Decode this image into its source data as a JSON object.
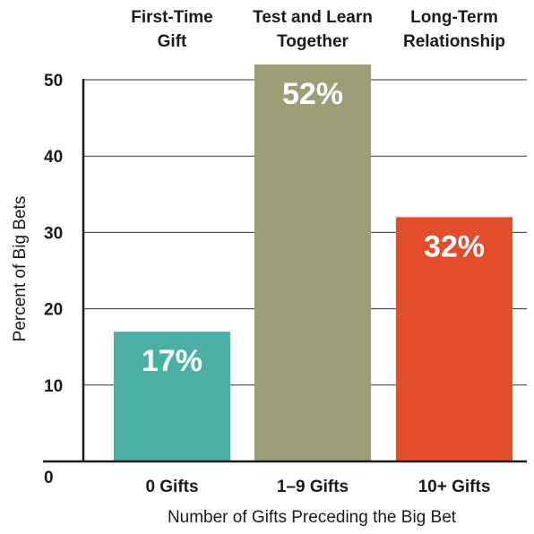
{
  "chart_data": {
    "type": "bar",
    "categories": [
      "0 Gifts",
      "1–9 Gifts",
      "10+ Gifts"
    ],
    "category_headers": [
      [
        "First-Time",
        "Gift"
      ],
      [
        "Test and Learn",
        "Together"
      ],
      [
        "Long-Term",
        "Relationship"
      ]
    ],
    "values": [
      17,
      52,
      32
    ],
    "data_labels": [
      "17%",
      "52%",
      "32%"
    ],
    "colors": [
      "#4bb0a3",
      "#9c9e78",
      "#e04e2c"
    ],
    "xlabel": "Number of Gifts Preceding the Big Bet",
    "ylabel": "Percent of Big Bets",
    "ylim": [
      0,
      52
    ],
    "yticks": [
      0,
      10,
      20,
      30,
      40,
      50
    ],
    "grid": true
  }
}
